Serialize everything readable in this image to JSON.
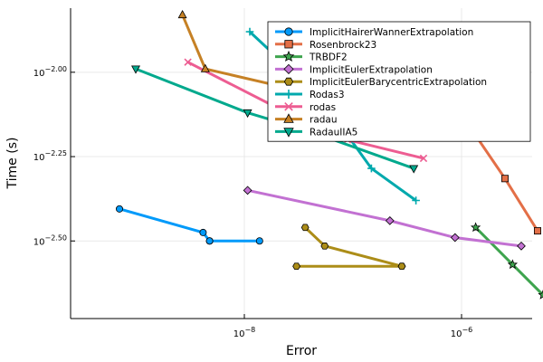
{
  "chart_data": {
    "type": "line",
    "title": "",
    "xlabel": "Error",
    "ylabel": "Time (s)",
    "xscale": "log",
    "yscale": "log",
    "xlim_log10": [
      -9.6,
      -5.35
    ],
    "ylim_log10": [
      -2.73,
      -1.81
    ],
    "x_ticks": [
      {
        "base": "10",
        "exp": "−8",
        "log10": -8
      },
      {
        "base": "10",
        "exp": "−6",
        "log10": -6
      }
    ],
    "y_ticks": [
      {
        "base": "10",
        "exp": "−2.00",
        "log10": -2.0
      },
      {
        "base": "10",
        "exp": "−2.25",
        "log10": -2.25
      },
      {
        "base": "10",
        "exp": "−2.50",
        "log10": -2.5
      }
    ],
    "grid": true,
    "legend_position": "top-right",
    "series": [
      {
        "name": "ImplicitHairerWannerExtrapolation",
        "color": "#009AFA",
        "marker": "circle",
        "points_log10": [
          [
            -9.15,
            -2.405
          ],
          [
            -8.38,
            -2.475
          ],
          [
            -8.32,
            -2.5
          ],
          [
            -7.86,
            -2.5
          ],
          [
            -8.32,
            -2.5
          ]
        ]
      },
      {
        "name": "Rosenbrock23",
        "color": "#E36F47",
        "marker": "square",
        "points_log10": [
          [
            -6.2,
            -1.95
          ],
          [
            -5.97,
            -2.14
          ],
          [
            -5.6,
            -2.315
          ],
          [
            -5.3,
            -2.47
          ]
        ]
      },
      {
        "name": "TRBDF2",
        "color": "#3EA44E",
        "marker": "star",
        "points_log10": [
          [
            -5.87,
            -2.46
          ],
          [
            -5.53,
            -2.57
          ],
          [
            -5.25,
            -2.66
          ],
          [
            -4.9,
            -2.71
          ]
        ]
      },
      {
        "name": "ImplicitEulerExtrapolation",
        "color": "#C271D2",
        "marker": "diamond",
        "points_log10": [
          [
            -7.97,
            -2.35
          ],
          [
            -6.66,
            -2.44
          ],
          [
            -6.06,
            -2.49
          ],
          [
            -5.45,
            -2.515
          ]
        ]
      },
      {
        "name": "ImplicitEulerBarycentricExtrapolation",
        "color": "#AC8D18",
        "marker": "hexagon",
        "points_log10": [
          [
            -7.44,
            -2.46
          ],
          [
            -7.26,
            -2.515
          ],
          [
            -6.55,
            -2.575
          ],
          [
            -7.52,
            -2.575
          ],
          [
            -6.55,
            -2.575
          ]
        ]
      },
      {
        "name": "Rodas3",
        "color": "#00A9AD",
        "marker": "cross",
        "points_log10": [
          [
            -7.95,
            -1.88
          ],
          [
            -7.3,
            -2.075
          ],
          [
            -6.83,
            -2.285
          ],
          [
            -6.42,
            -2.38
          ]
        ]
      },
      {
        "name": "rodas",
        "color": "#ED5D92",
        "marker": "x",
        "points_log10": [
          [
            -8.52,
            -1.97
          ],
          [
            -7.73,
            -2.1
          ],
          [
            -7.05,
            -2.2
          ],
          [
            -6.35,
            -2.255
          ]
        ]
      },
      {
        "name": "radau",
        "color": "#C68125",
        "marker": "triangle-up",
        "points_log10": [
          [
            -8.57,
            -1.83
          ],
          [
            -8.36,
            -1.99
          ],
          [
            -7.42,
            -2.06
          ],
          [
            -7.22,
            -2.11
          ]
        ]
      },
      {
        "name": "RadauIIA5",
        "color": "#00A98D",
        "marker": "triangle-down",
        "points_log10": [
          [
            -9.0,
            -1.99
          ],
          [
            -7.97,
            -2.12
          ],
          [
            -7.4,
            -2.175
          ],
          [
            -6.44,
            -2.285
          ]
        ]
      }
    ]
  }
}
